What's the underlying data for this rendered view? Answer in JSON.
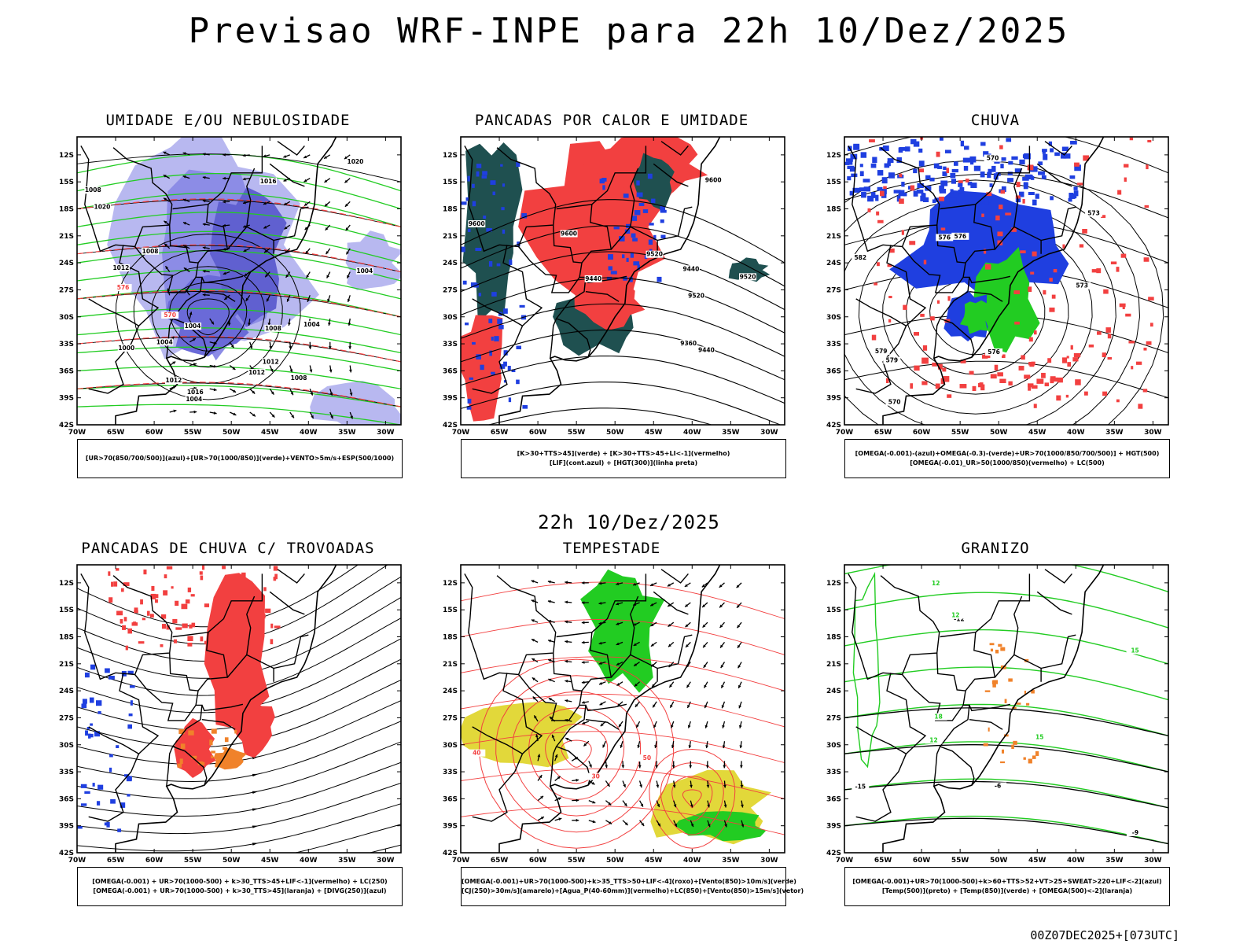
{
  "page": {
    "title": "Previsao WRF-INPE  para 22h 10/Dez/2025",
    "mid_time": "22h 10/Dez/2025",
    "footer": "00Z07DEC2025+[073UTC]"
  },
  "axes": {
    "lat_labels": [
      "12S",
      "15S",
      "18S",
      "21S",
      "24S",
      "27S",
      "30S",
      "33S",
      "36S",
      "39S",
      "42S"
    ],
    "lon_labels": [
      "70W",
      "65W",
      "60W",
      "55W",
      "50W",
      "45W",
      "40W",
      "35W",
      "30W"
    ],
    "lat_range": [
      -42,
      -10
    ],
    "lon_range": [
      -70,
      -28
    ]
  },
  "colors": {
    "blue": "#1f3fe0",
    "lavender": "#8c8ce6",
    "green": "#22cc22",
    "red": "#f24040",
    "orange": "#f0822a",
    "yellow": "#e2d83a",
    "darkteal": "#1f5050",
    "black": "#000000"
  },
  "panels": [
    {
      "id": "umidade",
      "title": "UMIDADE E/OU NEBULOSIDADE",
      "legend": [
        "[UR>70(850/700/500)](azul)+[UR>70(1000/850)](verde)+VENTO>5m/s+ESP(500/1000)"
      ],
      "contour_labels": [
        "1008",
        "1012",
        "1012",
        "1008",
        "1004",
        "1016",
        "1012",
        "1004",
        "1000",
        "1004",
        "1004",
        "1020",
        "1008",
        "1008",
        "1016",
        "1020",
        "1004",
        "1012",
        "570",
        "576"
      ]
    },
    {
      "id": "pancadas_calor",
      "title": "PANCADAS POR CALOR E UMIDADE",
      "legend": [
        "[K>30+TTS>45](verde) + [K>30+TTS>45+LI<-1](vermelho)",
        "[LIF](cont.azul) + [HGT(300)](linha preta)"
      ],
      "contour_labels": [
        "9600",
        "9600",
        "9600",
        "9520",
        "9520",
        "9440",
        "9520",
        "9440",
        "9440",
        "9360"
      ]
    },
    {
      "id": "chuva",
      "title": "CHUVA",
      "legend": [
        "[OMEGA(-0.001)-(azul)+OMEGA(-0.3)-(verde)+UR>70(1000/850/700/500)] + HGT(500)",
        "[OMEGA(-0.01)_UR>50(1000/850)(vermelho) + LC(500)"
      ],
      "contour_labels": [
        "582",
        "579",
        "576",
        "573",
        "576",
        "570",
        "573",
        "570",
        "576",
        "579"
      ]
    },
    {
      "id": "pancadas_trovoadas",
      "title": "PANCADAS DE CHUVA C/ TROVOADAS",
      "legend": [
        "[OMEGA(-0.001) + UR>70(1000-500) + k>30_TTS>45+LIF<-1](vermelho) + LC(250)",
        "[OMEGA(-0.001) + UR>70(1000-500) + k>30_TTS>45](laranja) + [DIVG(250)](azul)"
      ],
      "contour_labels": []
    },
    {
      "id": "tempestade",
      "title": "TEMPESTADE",
      "legend": [
        "[OMEGA(-0.001)+UR>70(1000-500)+k>35_TTS>50+LIF<-4](roxo)+[Vento(850)>10m/s](verde)",
        "[CJ(250)>30m/s](amarelo)+[Agua_P(40-60mm)](vermelho)+LC(850)+[Vento(850)>15m/s](vetor)"
      ],
      "contour_labels": [
        "40",
        "50",
        "30"
      ]
    },
    {
      "id": "granizo",
      "title": "GRANIZO",
      "legend": [
        "[OMEGA(-0.001)+UR>70(1000-500)+k>60+TTS>52+VT>25+SWEAT>220+LIF<-2](azul)",
        "[Temp(500)](preto) + [Temp(850)](verde) + [OMEGA(500)<-2](laranja)"
      ],
      "contour_labels": [
        "-15",
        "-12",
        "-9",
        "15",
        "12",
        "18",
        "12",
        "15",
        "-6",
        "12"
      ]
    }
  ]
}
